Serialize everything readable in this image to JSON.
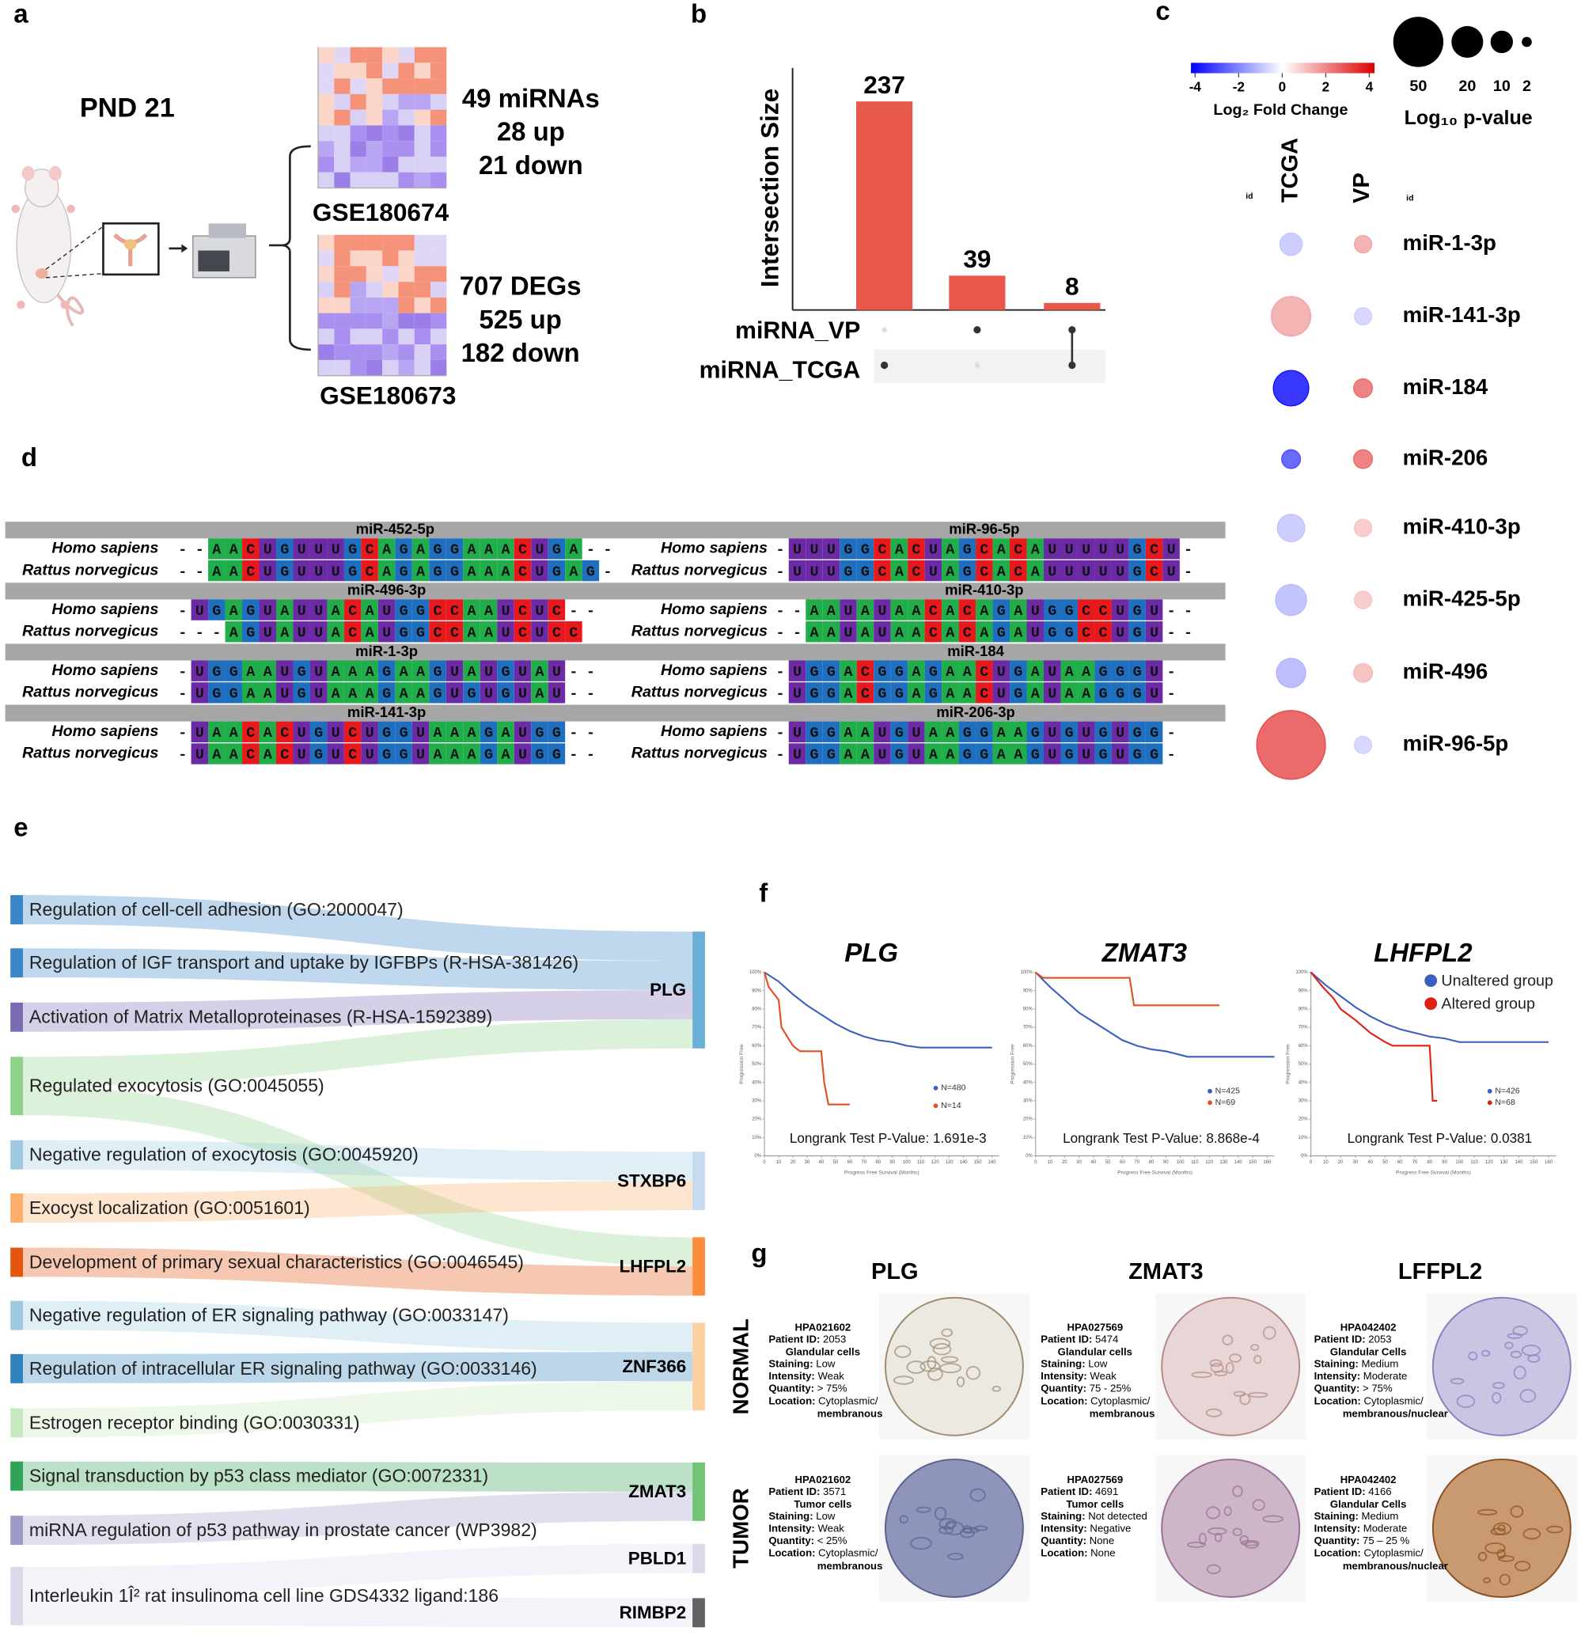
{
  "panel_labels": [
    "a",
    "b",
    "c",
    "d",
    "e",
    "f",
    "g"
  ],
  "panel_a": {
    "title": "PND 21",
    "datasets": [
      {
        "name": "GSE180674",
        "lines": [
          "49 miRNAs",
          "28 up",
          "21 down"
        ]
      },
      {
        "name": "GSE180673",
        "lines": [
          "707 DEGs",
          "525 up",
          "182 down"
        ]
      }
    ]
  },
  "chart_data": [
    {
      "type": "upset",
      "ylabel": "Intersection Size",
      "values": [
        237,
        39,
        8
      ],
      "ylim": [
        0,
        275
      ],
      "color": "#e8584b",
      "sets": [
        "miRNA_VP",
        "miRNA_TCGA"
      ],
      "membership": [
        [
          false,
          true
        ],
        [
          true,
          false
        ],
        [
          true,
          true
        ]
      ]
    },
    {
      "type": "bubble",
      "categories": [
        "miR-1-3p",
        "miR-141-3p",
        "miR-184",
        "miR-206",
        "miR-410-3p",
        "miR-425-5p",
        "miR-496",
        "miR-96-5p"
      ],
      "id_label": "id",
      "series": [
        {
          "name": "TCGA",
          "fold_change": [
            -1,
            1.5,
            -4,
            -3,
            -1,
            -1.2,
            -1.3,
            3
          ],
          "log10_p": [
            10,
            31,
            25,
            7,
            15,
            19,
            17,
            94
          ]
        },
        {
          "name": "VP",
          "fold_change": [
            1.5,
            -0.8,
            2.5,
            2.5,
            1,
            1,
            1.2,
            -0.8
          ],
          "log10_p": [
            6,
            6,
            7,
            7,
            6,
            6,
            7,
            6
          ]
        }
      ],
      "color_scale": {
        "label": "Log₂ Fold Change",
        "lim": [
          -4,
          4
        ],
        "ticks": [
          -4,
          -2,
          0,
          2,
          4
        ],
        "colors": [
          "#0000ff",
          "#ffffff",
          "#dd0000"
        ]
      },
      "size_legend": {
        "label": "Log₁₀ p-value",
        "values": [
          50,
          20,
          10,
          2
        ]
      }
    },
    {
      "type": "line",
      "title": "PLG",
      "xlabel": "Progress Free Survival (Months)",
      "ylabel": "Progression Free",
      "annotation": "Longrank Test P-Value: 1.691e-3",
      "xlim": [
        0,
        165
      ],
      "xticks": [
        0,
        10,
        20,
        30,
        40,
        50,
        60,
        70,
        80,
        90,
        100,
        110,
        120,
        130,
        140,
        150,
        160
      ],
      "ylim": [
        0,
        100
      ],
      "yticks": [
        {
          "value": 0,
          "label": "0%"
        },
        {
          "value": 10,
          "label": "10%"
        },
        {
          "value": 20,
          "label": "20%"
        },
        {
          "value": 30,
          "label": "30%"
        },
        {
          "value": 40,
          "label": "40%"
        },
        {
          "value": 50,
          "label": "50%"
        },
        {
          "value": 60,
          "label": "60%"
        },
        {
          "value": 70,
          "label": "70%"
        },
        {
          "value": 80,
          "label": "80%"
        },
        {
          "value": 90,
          "label": "90%"
        },
        {
          "value": 100,
          "label": "100%"
        }
      ],
      "series": [
        {
          "label": "N=480",
          "color": "#3a5fc0",
          "x": [
            0,
            10,
            20,
            30,
            40,
            50,
            60,
            70,
            80,
            90,
            100,
            110,
            120,
            160
          ],
          "values": [
            100,
            95,
            88,
            82,
            77,
            72,
            68,
            65,
            63,
            62,
            60,
            59,
            59,
            59
          ]
        },
        {
          "label": "N=14",
          "color": "#e05020",
          "x": [
            0,
            3,
            10,
            12,
            20,
            25,
            40,
            42,
            45,
            60
          ],
          "values": [
            100,
            92,
            85,
            70,
            60,
            57,
            57,
            40,
            28,
            28
          ]
        }
      ]
    },
    {
      "type": "line",
      "title": "ZMAT3",
      "xlabel": "Progress Free Survival (Months)",
      "ylabel": "Progression Free",
      "annotation": "Longrank Test P-Value: 8.868e-4",
      "xlim": [
        0,
        165
      ],
      "xticks": [
        0,
        10,
        20,
        30,
        40,
        50,
        60,
        70,
        80,
        90,
        100,
        110,
        120,
        130,
        140,
        150,
        160
      ],
      "ylim": [
        0,
        100
      ],
      "yticks": [
        {
          "value": 0,
          "label": "0%"
        },
        {
          "value": 10,
          "label": "10%"
        },
        {
          "value": 20,
          "label": "20%"
        },
        {
          "value": 30,
          "label": "30%"
        },
        {
          "value": 40,
          "label": "40%"
        },
        {
          "value": 50,
          "label": "50%"
        },
        {
          "value": 60,
          "label": "60%"
        },
        {
          "value": 70,
          "label": "70%"
        },
        {
          "value": 80,
          "label": "80%"
        },
        {
          "value": 90,
          "label": "90%"
        },
        {
          "value": 100,
          "label": "100%"
        }
      ],
      "series": [
        {
          "label": "N=425",
          "color": "#3a5fc0",
          "x": [
            0,
            10,
            20,
            30,
            40,
            50,
            60,
            70,
            80,
            90,
            100,
            105,
            165
          ],
          "values": [
            100,
            92,
            85,
            78,
            73,
            68,
            63,
            60,
            58,
            57,
            55,
            54,
            54
          ]
        },
        {
          "label": "N=69",
          "color": "#e05020",
          "x": [
            0,
            5,
            20,
            65,
            68,
            100,
            127
          ],
          "values": [
            100,
            97,
            97,
            97,
            82,
            82,
            82
          ]
        }
      ]
    },
    {
      "type": "line",
      "title": "LHFPL2",
      "xlabel": "Progress Free Survival (Months)",
      "ylabel": "Progression Free",
      "annotation": "Longrank Test P-Value: 0.0381",
      "legend": "top-right",
      "xlim": [
        0,
        165
      ],
      "xticks": [
        0,
        10,
        20,
        30,
        40,
        50,
        60,
        70,
        80,
        90,
        100,
        110,
        120,
        130,
        140,
        150,
        160
      ],
      "ylim": [
        0,
        100
      ],
      "yticks": [
        {
          "value": 0,
          "label": "0%"
        },
        {
          "value": 10,
          "label": "10%"
        },
        {
          "value": 20,
          "label": "20%"
        },
        {
          "value": 30,
          "label": "30%"
        },
        {
          "value": 40,
          "label": "40%"
        },
        {
          "value": 50,
          "label": "50%"
        },
        {
          "value": 60,
          "label": "60%"
        },
        {
          "value": 70,
          "label": "70%"
        },
        {
          "value": 80,
          "label": "80%"
        },
        {
          "value": 90,
          "label": "90%"
        },
        {
          "value": 100,
          "label": "100%"
        }
      ],
      "series": [
        {
          "name": "Unaltered group",
          "label": "N=426",
          "color": "#3a5fc0",
          "x": [
            0,
            10,
            20,
            30,
            40,
            50,
            60,
            70,
            80,
            90,
            100,
            110,
            160
          ],
          "values": [
            100,
            93,
            87,
            81,
            76,
            72,
            69,
            67,
            65,
            64,
            62,
            62,
            62
          ]
        },
        {
          "name": "Altered group",
          "label": "N=68",
          "color": "#e02010",
          "x": [
            0,
            8,
            15,
            20,
            30,
            40,
            50,
            55,
            80,
            82,
            85
          ],
          "values": [
            100,
            92,
            86,
            80,
            74,
            67,
            62,
            60,
            60,
            30,
            30
          ]
        }
      ]
    }
  ],
  "alignments": {
    "species": [
      "Homo sapiens",
      "Rattus norvegicus"
    ],
    "blocks": [
      {
        "name": "miR-452-5p",
        "seqs": [
          "--AACUGUUUGCAGAGGAAACUGA--",
          "--AACUGUUUGCAGAGGAAACUGAG-"
        ]
      },
      {
        "name": "miR-96-5p",
        "seqs": [
          "-UUUGGCACUAGCACAUUUUUGCU-",
          "-UUUGGCACUAGCACAUUUUUGCU-"
        ]
      },
      {
        "name": "miR-496-3p",
        "seqs": [
          "-UGAGUAUUACAUGGCCAAUCUC--",
          "---AGUAUUACAUGGCCAAUCUCC"
        ]
      },
      {
        "name": "miR-410-3p",
        "seqs": [
          "--AAUAUAACACAGAUGGCCUGU--",
          "--AAUAUAACACAGAUGGCCUGU--"
        ]
      },
      {
        "name": "miR-1-3p",
        "seqs": [
          "-UGGAAUGUAAAGAAGUAUGUAU--",
          "-UGGAAUGUAAAGAAGUGUGUAU--"
        ]
      },
      {
        "name": "miR-184",
        "seqs": [
          "-UGGACGGAGAACUGAUAAGGGU-",
          "-UGGACGGAGAACUGAUAAGGGU-"
        ]
      },
      {
        "name": "miR-141-3p",
        "seqs": [
          "-UAACACUGUCUGGUAAAGAUGG--",
          "-UAACACUGUCUGGUAAAGAUGG--"
        ]
      },
      {
        "name": "miR-206-3p",
        "seqs": [
          "-UGGAAUGUAAGGAAGUGUGUGG-",
          "-UGGAAUGUAAGGAAGUGUGUGG-"
        ]
      }
    ]
  },
  "sankey": {
    "terms": [
      {
        "label": "Regulation of cell-cell adhesion (GO:2000047)",
        "color": "#3a86c8",
        "targets": [
          "PLG"
        ]
      },
      {
        "label": "Regulation of IGF transport and uptake by IGFBPs (R-HSA-381426)",
        "color": "#3a86c8",
        "targets": [
          "PLG"
        ]
      },
      {
        "label": "Activation of Matrix Metalloproteinases (R-HSA-1592389)",
        "color": "#7b6bb5",
        "targets": [
          "PLG"
        ]
      },
      {
        "label": "Regulated exocytosis (GO:0045055)",
        "color": "#8fd28a",
        "targets": [
          "PLG",
          "LHFPL2"
        ]
      },
      {
        "label": "Negative regulation of exocytosis (GO:0045920)",
        "color": "#9ecae1",
        "targets": [
          "STXBP6"
        ]
      },
      {
        "label": "Exocyst localization (GO:0051601)",
        "color": "#fdae6b",
        "targets": [
          "STXBP6"
        ]
      },
      {
        "label": "Development of primary sexual characteristics (GO:0046545)",
        "color": "#e6550d",
        "targets": [
          "LHFPL2"
        ]
      },
      {
        "label": "Negative regulation of ER signaling pathway (GO:0033147)",
        "color": "#9ecae1",
        "targets": [
          "ZNF366"
        ]
      },
      {
        "label": "Regulation of intracellular ER signaling pathway (GO:0033146)",
        "color": "#3182bd",
        "targets": [
          "ZNF366"
        ]
      },
      {
        "label": "Estrogen receptor binding (GO:0030331)",
        "color": "#c7e9c0",
        "targets": [
          "ZNF366"
        ]
      },
      {
        "label": "Signal transduction by p53 class mediator (GO:0072331)",
        "color": "#31a354",
        "targets": [
          "ZMAT3"
        ]
      },
      {
        "label": "miRNA regulation of p53 pathway in prostate cancer (WP3982)",
        "color": "#9e9ac8",
        "targets": [
          "ZMAT3"
        ]
      },
      {
        "label": "Interleukin 1Î² rat insulinoma cell line GDS4332 ligand:186",
        "color": "#dadaeb",
        "targets": [
          "PBLD1",
          "RIMBP2"
        ]
      }
    ],
    "genes": [
      {
        "label": "PLG",
        "color": "#6baed6"
      },
      {
        "label": "STXBP6",
        "color": "#c6dbef"
      },
      {
        "label": "LHFPL2",
        "color": "#fd8d3c"
      },
      {
        "label": "ZNF366",
        "color": "#fdd0a2"
      },
      {
        "label": "ZMAT3",
        "color": "#74c476"
      },
      {
        "label": "PBLD1",
        "color": "#dadaeb"
      },
      {
        "label": "RIMBP2",
        "color": "#636363"
      }
    ]
  },
  "ihc": {
    "columns": [
      "PLG",
      "ZMAT3",
      "LFFPL2"
    ],
    "rows": [
      "NORMAL",
      "TUMOR"
    ],
    "cells": [
      [
        {
          "lines": [
            {
              "text": "HPA021602"
            },
            {
              "key": "Patient ID:",
              "value": " 2053"
            },
            {
              "text": "Glandular cells"
            },
            {
              "key": "Staining:",
              "value": " Low"
            },
            {
              "key": "Intensity:",
              "value": " Weak"
            },
            {
              "key": "Quantity:",
              "value": " > 75%"
            },
            {
              "key": "Location:",
              "value": " Cytoplasmic/"
            },
            {
              "text": "membranous"
            }
          ]
        },
        {
          "lines": [
            {
              "text": "HPA027569"
            },
            {
              "key": "Patient ID:",
              "value": " 5474"
            },
            {
              "text": "Glandular cells"
            },
            {
              "key": "Staining:",
              "value": " Low"
            },
            {
              "key": "Intensity:",
              "value": " Weak"
            },
            {
              "key": "Quantity:",
              "value": " 75 - 25%"
            },
            {
              "key": "Location:",
              "value": " Cytoplasmic/"
            },
            {
              "text": "membranous"
            }
          ]
        },
        {
          "lines": [
            {
              "text": "HPA042402"
            },
            {
              "key": "Patient ID:",
              "value": " 2053"
            },
            {
              "text": "Glandular Cells"
            },
            {
              "key": "Staining:",
              "value": " Medium"
            },
            {
              "key": "Intensity:",
              "value": " Moderate"
            },
            {
              "key": "Quantity:",
              "value": " > 75%"
            },
            {
              "key": "Location:",
              "value": " Cytoplasmic/"
            },
            {
              "text": "membranous/nuclear"
            }
          ]
        }
      ],
      [
        {
          "lines": [
            {
              "text": "HPA021602"
            },
            {
              "key": "Patient ID:",
              "value": " 3571"
            },
            {
              "text": "Tumor cells"
            },
            {
              "key": "Staining:",
              "value": " Low"
            },
            {
              "key": "Intensity:",
              "value": " Weak"
            },
            {
              "key": "Quantity:",
              "value": " < 25%"
            },
            {
              "key": "Location:",
              "value": " Cytoplasmic/"
            },
            {
              "text": "membranous"
            }
          ]
        },
        {
          "lines": [
            {
              "text": "HPA027569"
            },
            {
              "key": "Patient ID:",
              "value": " 4691"
            },
            {
              "text": "Tumor cells"
            },
            {
              "key": "Staining:",
              "value": " Not detected"
            },
            {
              "key": "Intensity:",
              "value": " Negative"
            },
            {
              "key": "Quantity:",
              "value": " None"
            },
            {
              "key": "Location:",
              "value": " None"
            }
          ]
        },
        {
          "lines": [
            {
              "text": "HPA042402"
            },
            {
              "key": "Patient ID:",
              "value": " 4166"
            },
            {
              "text": "Glandular Cells"
            },
            {
              "key": "Staining:",
              "value": " Medium"
            },
            {
              "key": "Intensity:",
              "value": " Moderate"
            },
            {
              "key": "Quantity:",
              "value": " 75 – 25 %"
            },
            {
              "key": "Location:",
              "value": " Cytoplasmic/"
            },
            {
              "text": "membranous/nuclear"
            }
          ]
        }
      ]
    ]
  }
}
